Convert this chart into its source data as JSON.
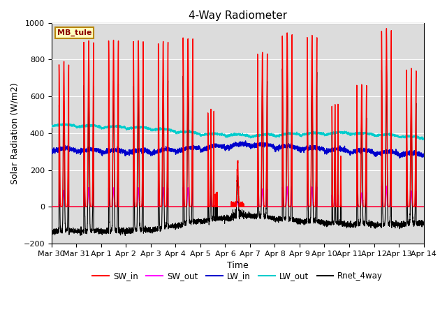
{
  "title": "4-Way Radiometer",
  "xlabel": "Time",
  "ylabel": "Solar Radiation (W/m2)",
  "annotation": "MB_tule",
  "ylim": [
    -200,
    1000
  ],
  "days": 15,
  "background_color": "#dcdcdc",
  "legend_entries": [
    "SW_in",
    "SW_out",
    "LW_in",
    "LW_out",
    "Rnet_4way"
  ],
  "legend_colors": [
    "#ff0000",
    "#ff00ff",
    "#0000cc",
    "#00dddd",
    "#000000"
  ],
  "tick_labels": [
    "Mar 30",
    "Mar 31",
    "Apr 1",
    "Apr 2",
    "Apr 3",
    "Apr 4",
    "Apr 5",
    "Apr 6",
    "Apr 7",
    "Apr 8",
    "Apr 9",
    "Apr 10",
    "Apr 11",
    "Apr 12",
    "Apr 13",
    "Apr 14"
  ],
  "grid_color": "#ffffff",
  "title_fontsize": 11,
  "label_fontsize": 9,
  "tick_fontsize": 8
}
